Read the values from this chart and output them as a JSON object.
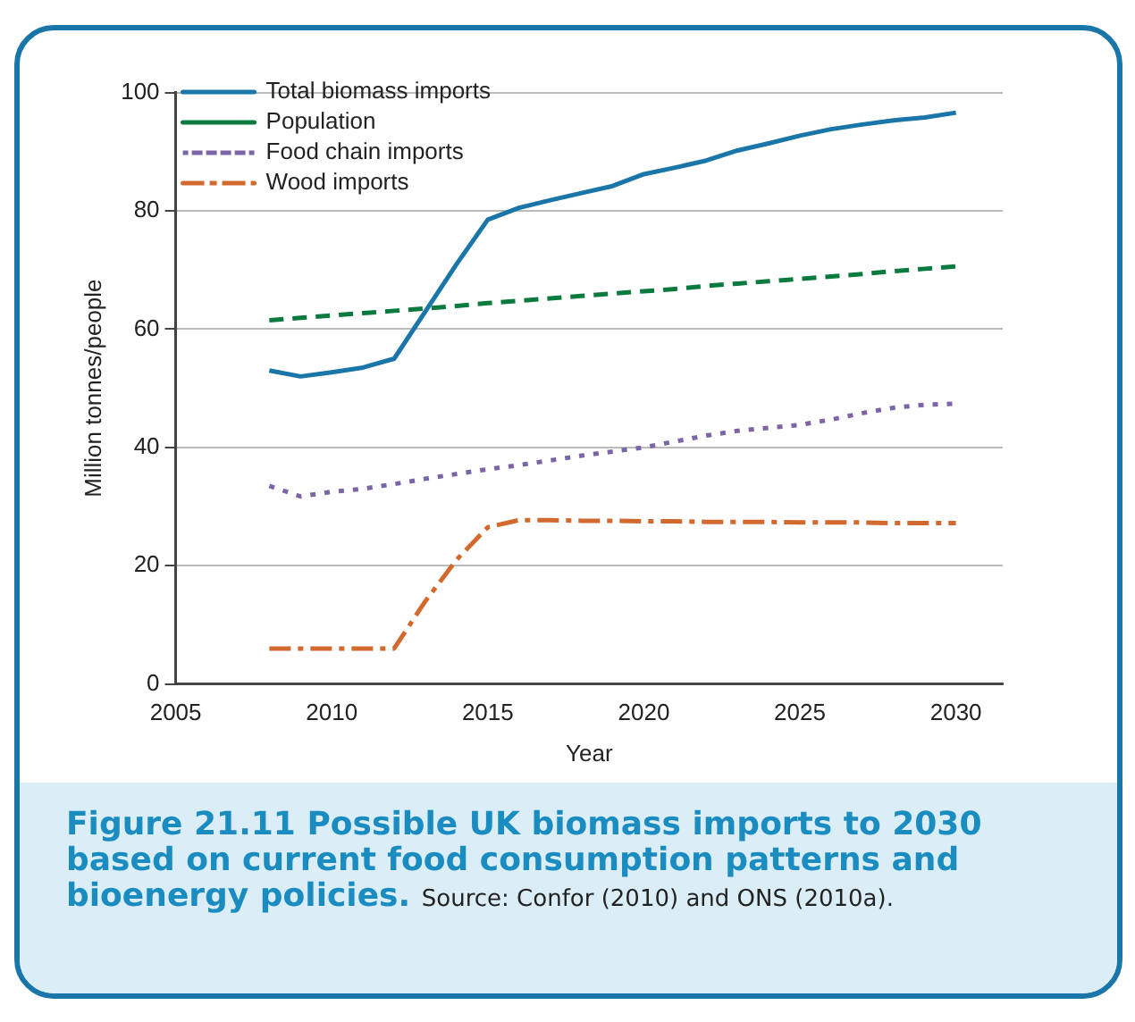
{
  "chart_data": {
    "type": "line",
    "title": "Figure 21.11 Possible UK biomass imports to 2030 based on current food consumption patterns and bioenergy policies.",
    "annotations": [
      "Source: Confor (2010) and ONS (2010a)."
    ],
    "xlabel": "Year",
    "ylabel": "Million tonnes/people",
    "x": [
      2008,
      2009,
      2010,
      2011,
      2012,
      2013,
      2014,
      2015,
      2016,
      2017,
      2018,
      2019,
      2020,
      2021,
      2022,
      2023,
      2024,
      2025,
      2026,
      2027,
      2028,
      2029,
      2030
    ],
    "series": [
      {
        "name": "Total biomass imports",
        "color": "#1a75a8",
        "line_style": "solid",
        "values": [
          53,
          52,
          52.7,
          53.5,
          55,
          63,
          71,
          78.5,
          80.5,
          81.8,
          83,
          84.2,
          86.2,
          87.3,
          88.5,
          90.2,
          91.4,
          92.7,
          93.8,
          94.6,
          95.3,
          95.8,
          96.6
        ]
      },
      {
        "name": "Population",
        "color": "#0a7a3e",
        "line_style": "dashed",
        "values": [
          61.5,
          61.9,
          62.3,
          62.7,
          63.1,
          63.5,
          63.9,
          64.4,
          64.8,
          65.2,
          65.6,
          66.0,
          66.4,
          66.8,
          67.3,
          67.7,
          68.1,
          68.5,
          68.9,
          69.3,
          69.8,
          70.2,
          70.6
        ]
      },
      {
        "name": "Food chain imports",
        "color": "#7b65a6",
        "line_style": "dotted",
        "values": [
          33.5,
          31.7,
          32.5,
          33,
          33.8,
          34.7,
          35.5,
          36.3,
          37,
          37.8,
          38.6,
          39.3,
          40,
          41,
          42,
          42.8,
          43.3,
          43.8,
          44.7,
          45.8,
          46.7,
          47.2,
          47.4
        ]
      },
      {
        "name": "Wood imports",
        "color": "#d2692e",
        "line_style": "dashdot",
        "values": [
          6,
          6,
          6,
          6,
          6,
          14,
          21,
          26.5,
          27.7,
          27.7,
          27.6,
          27.6,
          27.5,
          27.5,
          27.4,
          27.4,
          27.4,
          27.3,
          27.3,
          27.3,
          27.2,
          27.2,
          27.2
        ]
      }
    ],
    "xlim": [
      2005,
      2031.5
    ],
    "xticks": [
      2005,
      2010,
      2015,
      2020,
      2025,
      2030
    ],
    "ylim": [
      0,
      100
    ],
    "yticks": [
      0,
      20,
      40,
      60,
      80,
      100
    ],
    "grid": "y",
    "legend": "top left",
    "marker": "none"
  }
}
